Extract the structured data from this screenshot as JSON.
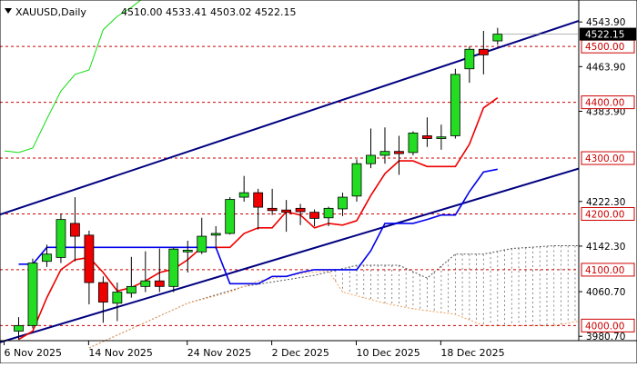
{
  "header": {
    "symbol": "XAUUSD,Daily",
    "ohlc": "4510.00 4533.41 4503.02 4522.15",
    "icon": "triangle-down-icon"
  },
  "chart_data": {
    "type": "candlestick",
    "symbol": "XAUUSD",
    "timeframe": "Daily",
    "ylim": [
      3940,
      4560
    ],
    "y_ticks": [
      "4543.90",
      "4463.90",
      "4383.90",
      "4222.30",
      "4142.30",
      "4060.70",
      "3980.70"
    ],
    "x_ticks": [
      "6 Nov 2025",
      "14 Nov 2025",
      "24 Nov 2025",
      "2 Dec 2025",
      "10 Dec 2025",
      "18 Dec 2025"
    ],
    "x_tick_index": [
      0,
      6,
      13,
      19,
      25,
      31
    ],
    "current_price": "4522.15",
    "levels": [
      {
        "label": "4500.00",
        "value": 4500
      },
      {
        "label": "4400.00",
        "value": 4400
      },
      {
        "label": "4300.00",
        "value": 4300
      },
      {
        "label": "4200.00",
        "value": 4200
      },
      {
        "label": "4100.00",
        "value": 4100
      },
      {
        "label": "4000.00",
        "value": 4000
      }
    ],
    "candles": [
      {
        "o": 3990,
        "h": 4015,
        "l": 3975,
        "c": 4000
      },
      {
        "o": 4000,
        "h": 4120,
        "l": 3995,
        "c": 4112
      },
      {
        "o": 4115,
        "h": 4145,
        "l": 4105,
        "c": 4128
      },
      {
        "o": 4122,
        "h": 4200,
        "l": 4112,
        "c": 4190
      },
      {
        "o": 4183,
        "h": 4230,
        "l": 4115,
        "c": 4160
      },
      {
        "o": 4162,
        "h": 4170,
        "l": 4038,
        "c": 4077
      },
      {
        "o": 4077,
        "h": 4088,
        "l": 4005,
        "c": 4042
      },
      {
        "o": 4040,
        "h": 4077,
        "l": 4008,
        "c": 4060
      },
      {
        "o": 4058,
        "h": 4123,
        "l": 4050,
        "c": 4070
      },
      {
        "o": 4070,
        "h": 4133,
        "l": 4060,
        "c": 4080
      },
      {
        "o": 4080,
        "h": 4138,
        "l": 4060,
        "c": 4070
      },
      {
        "o": 4070,
        "h": 4140,
        "l": 4060,
        "c": 4137
      },
      {
        "o": 4132,
        "h": 4152,
        "l": 4095,
        "c": 4135
      },
      {
        "o": 4132,
        "h": 4193,
        "l": 4128,
        "c": 4160
      },
      {
        "o": 4162,
        "h": 4178,
        "l": 4138,
        "c": 4165
      },
      {
        "o": 4165,
        "h": 4230,
        "l": 4163,
        "c": 4226
      },
      {
        "o": 4230,
        "h": 4268,
        "l": 4222,
        "c": 4238
      },
      {
        "o": 4238,
        "h": 4245,
        "l": 4172,
        "c": 4212
      },
      {
        "o": 4210,
        "h": 4245,
        "l": 4198,
        "c": 4206
      },
      {
        "o": 4207,
        "h": 4225,
        "l": 4168,
        "c": 4203
      },
      {
        "o": 4210,
        "h": 4218,
        "l": 4180,
        "c": 4204
      },
      {
        "o": 4203,
        "h": 4208,
        "l": 4178,
        "c": 4192
      },
      {
        "o": 4193,
        "h": 4213,
        "l": 4178,
        "c": 4210
      },
      {
        "o": 4209,
        "h": 4238,
        "l": 4196,
        "c": 4230
      },
      {
        "o": 4232,
        "h": 4298,
        "l": 4222,
        "c": 4290
      },
      {
        "o": 4290,
        "h": 4353,
        "l": 4282,
        "c": 4305
      },
      {
        "o": 4305,
        "h": 4355,
        "l": 4290,
        "c": 4312
      },
      {
        "o": 4312,
        "h": 4340,
        "l": 4270,
        "c": 4308
      },
      {
        "o": 4310,
        "h": 4348,
        "l": 4305,
        "c": 4345
      },
      {
        "o": 4340,
        "h": 4373,
        "l": 4320,
        "c": 4335
      },
      {
        "o": 4335,
        "h": 4360,
        "l": 4315,
        "c": 4338
      },
      {
        "o": 4340,
        "h": 4460,
        "l": 4335,
        "c": 4450
      },
      {
        "o": 4460,
        "h": 4500,
        "l": 4435,
        "c": 4495
      },
      {
        "o": 4495,
        "h": 4528,
        "l": 4450,
        "c": 4485
      },
      {
        "o": 4510,
        "h": 4533.41,
        "l": 4503.02,
        "c": 4522.15
      }
    ],
    "series": [
      {
        "style": "red",
        "values": [
          3975,
          3990,
          4050,
          4100,
          4118,
          4122,
          4095,
          4062,
          4068,
          4080,
          4095,
          4101,
          4118,
          4140,
          4140,
          4140,
          4165,
          4175,
          4175,
          4204,
          4198,
          4175,
          4183,
          4180,
          4188,
          4233,
          4272,
          4295,
          4295,
          4285,
          4285,
          4285,
          4325,
          4390,
          4408
        ]
      },
      {
        "style": "blue",
        "values": [
          4110,
          4110,
          4140,
          4140,
          4140,
          4140,
          4140,
          4140,
          4140,
          4140,
          4140,
          4140,
          4140,
          4140,
          4140,
          4075,
          4075,
          4075,
          4088,
          4088,
          4095,
          4100,
          4100,
          4100,
          4100,
          4134,
          4183,
          4183,
          4183,
          4190,
          4198,
          4198,
          4240,
          4275,
          4280
        ]
      },
      {
        "style": "green",
        "values": [
          4313,
          4310,
          4318,
          4370,
          4420,
          4450,
          4458,
          4530,
          4554,
          4570,
          4590
        ]
      }
    ],
    "channel": {
      "upper": [
        [
          0,
          4210
        ],
        [
          40,
          4548
        ]
      ],
      "lower": [
        [
          0,
          3980
        ],
        [
          40,
          4283
        ]
      ]
    },
    "cloud": {
      "top": [
        [
          5,
          3960
        ],
        [
          12,
          4040
        ],
        [
          16,
          4070
        ],
        [
          21,
          4090
        ],
        [
          24,
          4108
        ],
        [
          27,
          4108
        ],
        [
          29,
          4085
        ],
        [
          31,
          4128
        ],
        [
          33,
          4128
        ],
        [
          35,
          4138
        ],
        [
          38,
          4143
        ],
        [
          40,
          4143
        ]
      ],
      "bottom": [
        [
          5,
          3960
        ],
        [
          12,
          4040
        ],
        [
          15,
          4060
        ],
        [
          17,
          4080
        ],
        [
          20,
          4093
        ],
        [
          22,
          4098
        ],
        [
          23,
          4060
        ],
        [
          26,
          4040
        ],
        [
          28,
          4030
        ],
        [
          31,
          4020
        ],
        [
          33,
          4000
        ],
        [
          35,
          4000
        ],
        [
          38,
          4000
        ],
        [
          40,
          4008
        ]
      ]
    }
  }
}
